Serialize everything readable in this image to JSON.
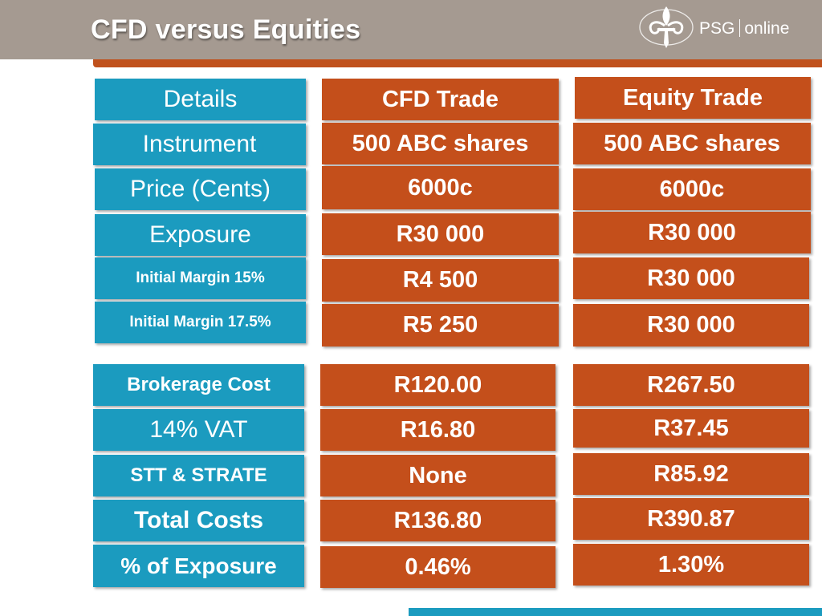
{
  "slide": {
    "title": "CFD versus Equities"
  },
  "logo": {
    "icon": "fleur-de-lis-icon",
    "brand": "PSG",
    "suffix": "online"
  },
  "colors": {
    "header": "#a59a91",
    "accent_orange": "#c44f1b",
    "accent_blue": "#1b9bbf"
  },
  "table_top": {
    "headers": [
      "Details",
      "CFD Trade",
      "Equity Trade"
    ],
    "rows": [
      {
        "label": "Instrument",
        "cfd": "500 ABC shares",
        "equity": "500 ABC shares"
      },
      {
        "label": "Price (Cents)",
        "cfd": "6000c",
        "equity": "6000c"
      },
      {
        "label": "Exposure",
        "cfd": "R30 000",
        "equity": "R30 000"
      },
      {
        "label": "Initial Margin 15%",
        "cfd": "R4 500",
        "equity": "R30 000"
      },
      {
        "label": "Initial Margin 17.5%",
        "cfd": "R5 250",
        "equity": "R30 000"
      }
    ]
  },
  "table_bottom": {
    "rows": [
      {
        "label": "Brokerage Cost",
        "cfd": "R120.00",
        "equity": "R267.50"
      },
      {
        "label": "14% VAT",
        "cfd": "R16.80",
        "equity": "R37.45"
      },
      {
        "label": "STT & STRATE",
        "cfd": "None",
        "equity": "R85.92"
      },
      {
        "label": "Total Costs",
        "cfd": "R136.80",
        "equity": "R390.87"
      },
      {
        "label": "% of Exposure",
        "cfd": "0.46%",
        "equity": "1.30%"
      }
    ]
  }
}
